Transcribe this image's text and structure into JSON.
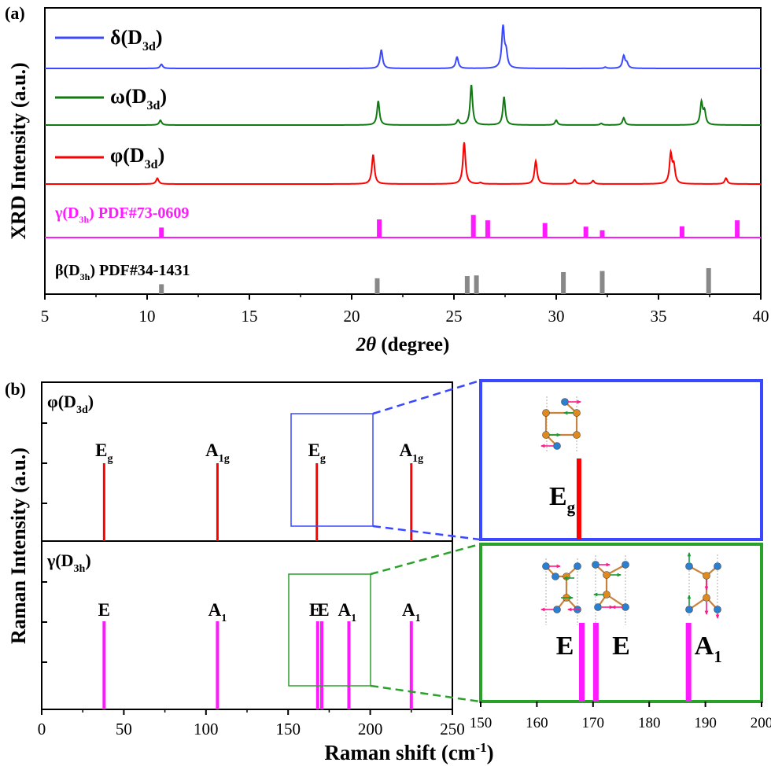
{
  "colors": {
    "delta": "#3a48ff",
    "omega": "#127a12",
    "phi": "#ff0000",
    "gamma": "#ff19ff",
    "beta": "#888888",
    "box_blue": "#3a48ff",
    "box_green": "#2aa12a",
    "atom_orange": "#e08a1e",
    "atom_blue": "#2a7fd0",
    "arrow_pink": "#ff1a8a",
    "arrow_green": "#1a9a3a",
    "bond": "#c8823c"
  },
  "chart_data": [
    {
      "panel": "a",
      "type": "line",
      "panel_label": "(a)",
      "xlabel_sym": "2θ",
      "xlabel_rest": " (degree)",
      "ylabel": "XRD Intensity (a.u.)",
      "xlim": [
        5,
        40
      ],
      "xticks": [
        5,
        10,
        15,
        20,
        25,
        30,
        35,
        40
      ],
      "series": [
        {
          "key": "delta",
          "label_main": "δ(D",
          "label_sub": "3d",
          "label_tail": ")",
          "color": "#3a48ff",
          "legend_line": true,
          "peaks": [
            [
              10.7,
              0.1
            ],
            [
              21.45,
              0.45
            ],
            [
              25.15,
              0.28
            ],
            [
              27.4,
              1.0
            ],
            [
              27.55,
              0.35
            ],
            [
              32.4,
              0.03
            ],
            [
              33.3,
              0.3
            ],
            [
              33.45,
              0.12
            ]
          ]
        },
        {
          "key": "omega",
          "label_main": "ω(D",
          "label_sub": "3d",
          "label_tail": ")",
          "color": "#127a12",
          "legend_line": true,
          "peaks": [
            [
              10.65,
              0.12
            ],
            [
              21.3,
              0.6
            ],
            [
              25.2,
              0.12
            ],
            [
              25.85,
              1.0
            ],
            [
              27.45,
              0.7
            ],
            [
              30.0,
              0.12
            ],
            [
              32.2,
              0.04
            ],
            [
              33.3,
              0.18
            ],
            [
              37.1,
              0.55
            ],
            [
              37.25,
              0.32
            ]
          ]
        },
        {
          "key": "phi",
          "label_main": "φ(D",
          "label_sub": "3d",
          "label_tail": ")",
          "color": "#ff0000",
          "legend_line": true,
          "peaks": [
            [
              10.5,
              0.14
            ],
            [
              21.05,
              0.7
            ],
            [
              25.5,
              1.0
            ],
            [
              26.3,
              0.03
            ],
            [
              29.0,
              0.55
            ],
            [
              30.9,
              0.1
            ],
            [
              31.8,
              0.08
            ],
            [
              35.6,
              0.7
            ],
            [
              35.75,
              0.4
            ],
            [
              38.3,
              0.14
            ]
          ]
        },
        {
          "key": "gamma",
          "label_main": "γ(D",
          "label_sub": "3h",
          "label_tail": ") PDF#73-0609",
          "color": "#ff19ff",
          "legend_line": false,
          "sticks": [
            [
              10.7,
              0.55
            ],
            [
              21.35,
              1.0
            ],
            [
              25.95,
              1.25
            ],
            [
              26.65,
              0.95
            ],
            [
              29.45,
              0.8
            ],
            [
              31.45,
              0.6
            ],
            [
              32.25,
              0.4
            ],
            [
              36.15,
              0.62
            ],
            [
              38.85,
              0.95
            ]
          ]
        },
        {
          "key": "beta",
          "label_main": "β(D",
          "label_sub": "3h",
          "label_tail": ") PDF#34-1431",
          "color": "#888888",
          "legend_line": false,
          "sticks": [
            [
              10.7,
              0.45
            ],
            [
              21.25,
              0.72
            ],
            [
              25.65,
              0.82
            ],
            [
              26.1,
              0.85
            ],
            [
              30.35,
              1.0
            ],
            [
              32.25,
              1.05
            ],
            [
              37.45,
              1.18
            ]
          ]
        }
      ]
    },
    {
      "panel": "b",
      "type": "bar",
      "panel_label": "(b)",
      "xlabel_main": "Raman shift (cm",
      "xlabel_sup": "-1",
      "xlabel_tail": ")",
      "ylabel": "Raman Intensity (a.u.)",
      "xlim": [
        0,
        250
      ],
      "xticks": [
        0,
        50,
        100,
        150,
        200,
        250
      ],
      "phi": {
        "label_main": "φ(D",
        "label_sub": "3d",
        "label_tail": ")",
        "modes": [
          {
            "x": 38,
            "value": 1,
            "label": "E",
            "sub": "g"
          },
          {
            "x": 107,
            "value": 1,
            "label": "A",
            "sub": "1g"
          },
          {
            "x": 167.5,
            "value": 1,
            "label": "E",
            "sub": "g"
          },
          {
            "x": 225,
            "value": 1,
            "label": "A",
            "sub": "1g"
          }
        ]
      },
      "gamma": {
        "label_main": "γ(D",
        "label_sub": "3h",
        "label_tail": ")",
        "modes": [
          {
            "x": 38,
            "value": 1,
            "label": "E",
            "sub": ""
          },
          {
            "x": 107,
            "value": 1,
            "label": "A",
            "sub": "1"
          },
          {
            "x": 168,
            "value": 1,
            "label": "E",
            "sub": ""
          },
          {
            "x": 170.5,
            "value": 1,
            "label": "E",
            "sub": ""
          },
          {
            "x": 187,
            "value": 1,
            "label": "A",
            "sub": "1"
          },
          {
            "x": 225,
            "value": 1,
            "label": "A",
            "sub": "1"
          }
        ]
      },
      "zoom_xlim": [
        150,
        200
      ],
      "zoom_xticks": [
        150,
        160,
        170,
        180,
        190,
        200
      ],
      "zoom_phi_labels": [
        {
          "label": "E",
          "sub": "g",
          "x": 167.5
        }
      ],
      "zoom_gamma_labels": [
        {
          "label": "E",
          "sub": "",
          "x": 165
        },
        {
          "label": "E",
          "sub": "",
          "x": 175
        },
        {
          "label": "A",
          "sub": "1",
          "x": 190.5
        }
      ]
    }
  ]
}
